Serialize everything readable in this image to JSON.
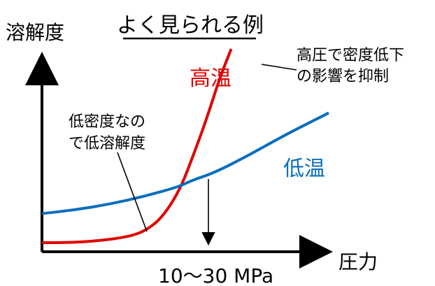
{
  "chart_data": {
    "type": "line",
    "title": "よく見られる例",
    "ylabel": "溶解度",
    "xlabel": "圧力",
    "crossover_label": "10～30 MPa",
    "series": [
      {
        "name": "高温",
        "color": "#e00000",
        "points": [
          [
            0.0,
            0.0
          ],
          [
            0.1,
            0.0
          ],
          [
            0.2,
            0.01
          ],
          [
            0.3,
            0.03
          ],
          [
            0.36,
            0.06
          ],
          [
            0.42,
            0.13
          ],
          [
            0.48,
            0.27
          ],
          [
            0.52,
            0.42
          ],
          [
            0.57,
            0.62
          ],
          [
            0.62,
            0.85
          ],
          [
            0.66,
            1.0
          ]
        ]
      },
      {
        "name": "低温",
        "color": "#0a6ebd",
        "points": [
          [
            0.0,
            0.15
          ],
          [
            0.12,
            0.17
          ],
          [
            0.24,
            0.2
          ],
          [
            0.36,
            0.24
          ],
          [
            0.48,
            0.29
          ],
          [
            0.52,
            0.32
          ],
          [
            0.6,
            0.36
          ],
          [
            0.72,
            0.45
          ],
          [
            0.84,
            0.55
          ],
          [
            1.0,
            0.67
          ]
        ]
      }
    ],
    "annotations": [
      {
        "id": "annotation-high-pressure",
        "lines": [
          "高圧で密度低下",
          "の影響を抑制"
        ],
        "target": [
          0.62,
          0.85
        ]
      },
      {
        "id": "annotation-low-density",
        "lines": [
          "低密度なの",
          "で低溶解度"
        ],
        "target": [
          0.34,
          0.05
        ]
      }
    ],
    "axis_line_color": "#000000",
    "grid": false,
    "legend": "inline labels"
  }
}
